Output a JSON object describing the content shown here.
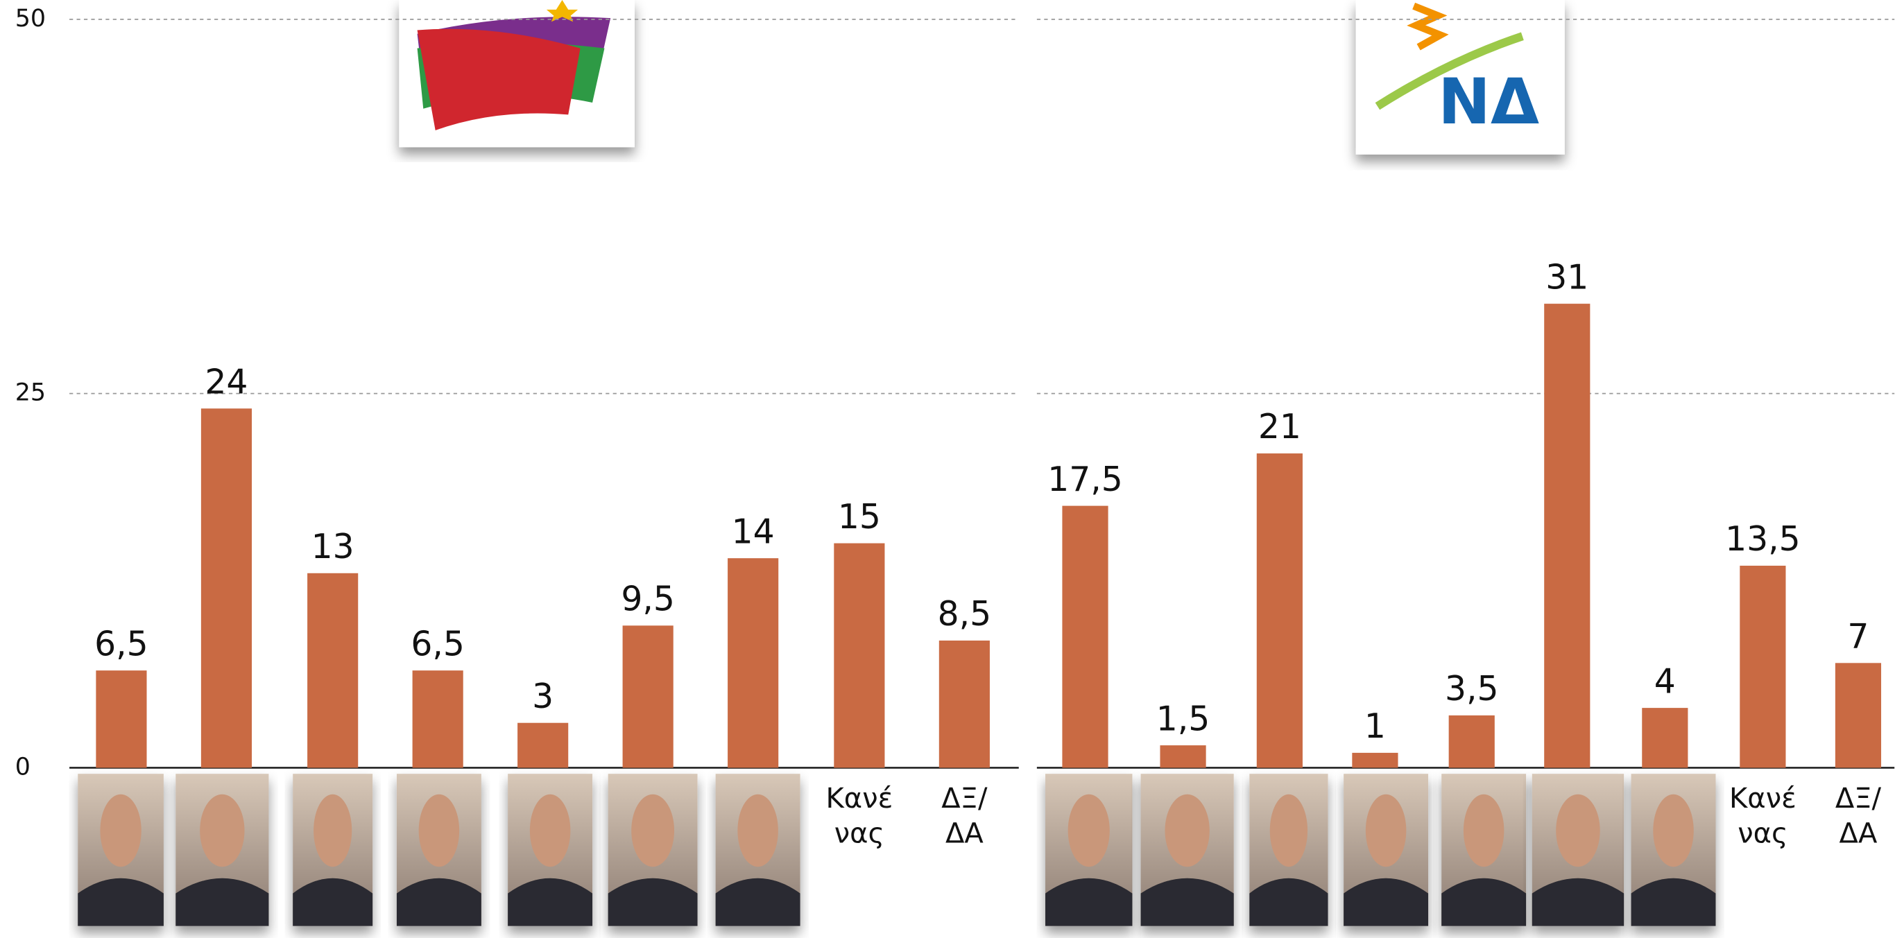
{
  "chart_data": [
    {
      "type": "bar",
      "color": "#c96a43",
      "ylim": [
        0,
        50
      ],
      "yticks": [
        0,
        25,
        50
      ],
      "grid": true,
      "categories": [
        null,
        null,
        null,
        null,
        null,
        null,
        null,
        "Κανέ\nνας",
        "ΔΞ/\nΔΑ"
      ],
      "values": [
        6.5,
        24,
        13,
        6.5,
        3,
        9.5,
        14,
        15,
        8.5
      ],
      "value_labels": [
        "6,5",
        "24",
        "13",
        "6,5",
        "3",
        "9,5",
        "14",
        "15",
        "8,5"
      ]
    },
    {
      "type": "bar",
      "color": "#c96a43",
      "ylim": [
        0,
        50
      ],
      "yticks": [
        0,
        25,
        50
      ],
      "grid": true,
      "categories": [
        null,
        null,
        null,
        null,
        null,
        null,
        null,
        "Κανέ\nνας",
        "ΔΞ/\nΔΑ"
      ],
      "values": [
        17.5,
        1.5,
        21,
        1,
        3.5,
        31,
        4,
        13.5,
        7
      ],
      "value_labels": [
        "17,5",
        "1,5",
        "21",
        "1",
        "3,5",
        "31",
        "4",
        "13,5",
        "7"
      ]
    }
  ]
}
